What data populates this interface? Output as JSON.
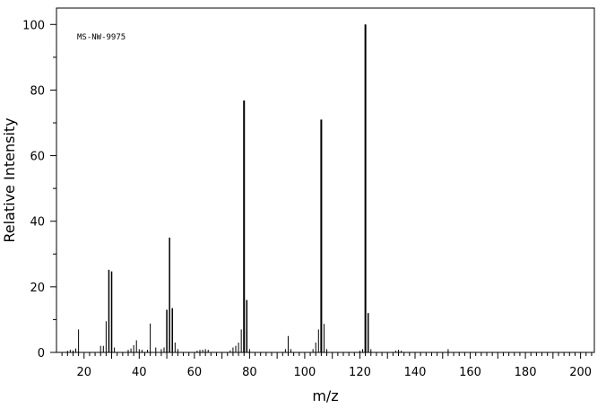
{
  "chart_data": {
    "type": "bar",
    "title": "",
    "annotation": "MS-NW-9975",
    "xlabel": "m/z",
    "ylabel": "Relative Intensity",
    "xlim": [
      10,
      205
    ],
    "ylim": [
      0,
      105
    ],
    "x_ticks_major": [
      20,
      40,
      60,
      80,
      100,
      120,
      140,
      160,
      180,
      200
    ],
    "y_ticks_major": [
      0,
      20,
      40,
      60,
      80,
      100
    ],
    "grid": false,
    "legend": "none",
    "peaks": [
      {
        "x": 14,
        "y": 0.5
      },
      {
        "x": 15,
        "y": 0.8
      },
      {
        "x": 16,
        "y": 0.6
      },
      {
        "x": 17,
        "y": 1.2
      },
      {
        "x": 18,
        "y": 7.0
      },
      {
        "x": 26,
        "y": 2.0
      },
      {
        "x": 27,
        "y": 2.0
      },
      {
        "x": 28,
        "y": 9.5
      },
      {
        "x": 29,
        "y": 25.2
      },
      {
        "x": 30,
        "y": 24.7
      },
      {
        "x": 31,
        "y": 1.5
      },
      {
        "x": 36,
        "y": 0.8
      },
      {
        "x": 37,
        "y": 1.2
      },
      {
        "x": 38,
        "y": 2.2
      },
      {
        "x": 39,
        "y": 3.7
      },
      {
        "x": 40,
        "y": 1.0
      },
      {
        "x": 41,
        "y": 0.8
      },
      {
        "x": 43,
        "y": 0.8
      },
      {
        "x": 44,
        "y": 8.8
      },
      {
        "x": 46,
        "y": 1.5
      },
      {
        "x": 48,
        "y": 1.0
      },
      {
        "x": 49,
        "y": 1.5
      },
      {
        "x": 50,
        "y": 13.0
      },
      {
        "x": 51,
        "y": 35.0
      },
      {
        "x": 52,
        "y": 13.5
      },
      {
        "x": 53,
        "y": 3.0
      },
      {
        "x": 54,
        "y": 1.0
      },
      {
        "x": 61,
        "y": 0.5
      },
      {
        "x": 62,
        "y": 0.8
      },
      {
        "x": 63,
        "y": 0.8
      },
      {
        "x": 64,
        "y": 1.0
      },
      {
        "x": 65,
        "y": 0.8
      },
      {
        "x": 73,
        "y": 0.6
      },
      {
        "x": 74,
        "y": 1.5
      },
      {
        "x": 75,
        "y": 2.0
      },
      {
        "x": 76,
        "y": 3.0
      },
      {
        "x": 77,
        "y": 7.0
      },
      {
        "x": 78,
        "y": 76.8
      },
      {
        "x": 79,
        "y": 16.0
      },
      {
        "x": 80,
        "y": 1.0
      },
      {
        "x": 93,
        "y": 1.0
      },
      {
        "x": 94,
        "y": 5.0
      },
      {
        "x": 95,
        "y": 1.0
      },
      {
        "x": 103,
        "y": 1.0
      },
      {
        "x": 104,
        "y": 3.0
      },
      {
        "x": 105,
        "y": 7.0
      },
      {
        "x": 106,
        "y": 71.0
      },
      {
        "x": 107,
        "y": 8.7
      },
      {
        "x": 108,
        "y": 1.0
      },
      {
        "x": 120,
        "y": 0.5
      },
      {
        "x": 121,
        "y": 1.0
      },
      {
        "x": 122,
        "y": 100.0
      },
      {
        "x": 123,
        "y": 12.0
      },
      {
        "x": 124,
        "y": 1.0
      },
      {
        "x": 133,
        "y": 0.5
      },
      {
        "x": 134,
        "y": 0.8
      },
      {
        "x": 135,
        "y": 0.5
      },
      {
        "x": 152,
        "y": 1.0
      }
    ]
  }
}
